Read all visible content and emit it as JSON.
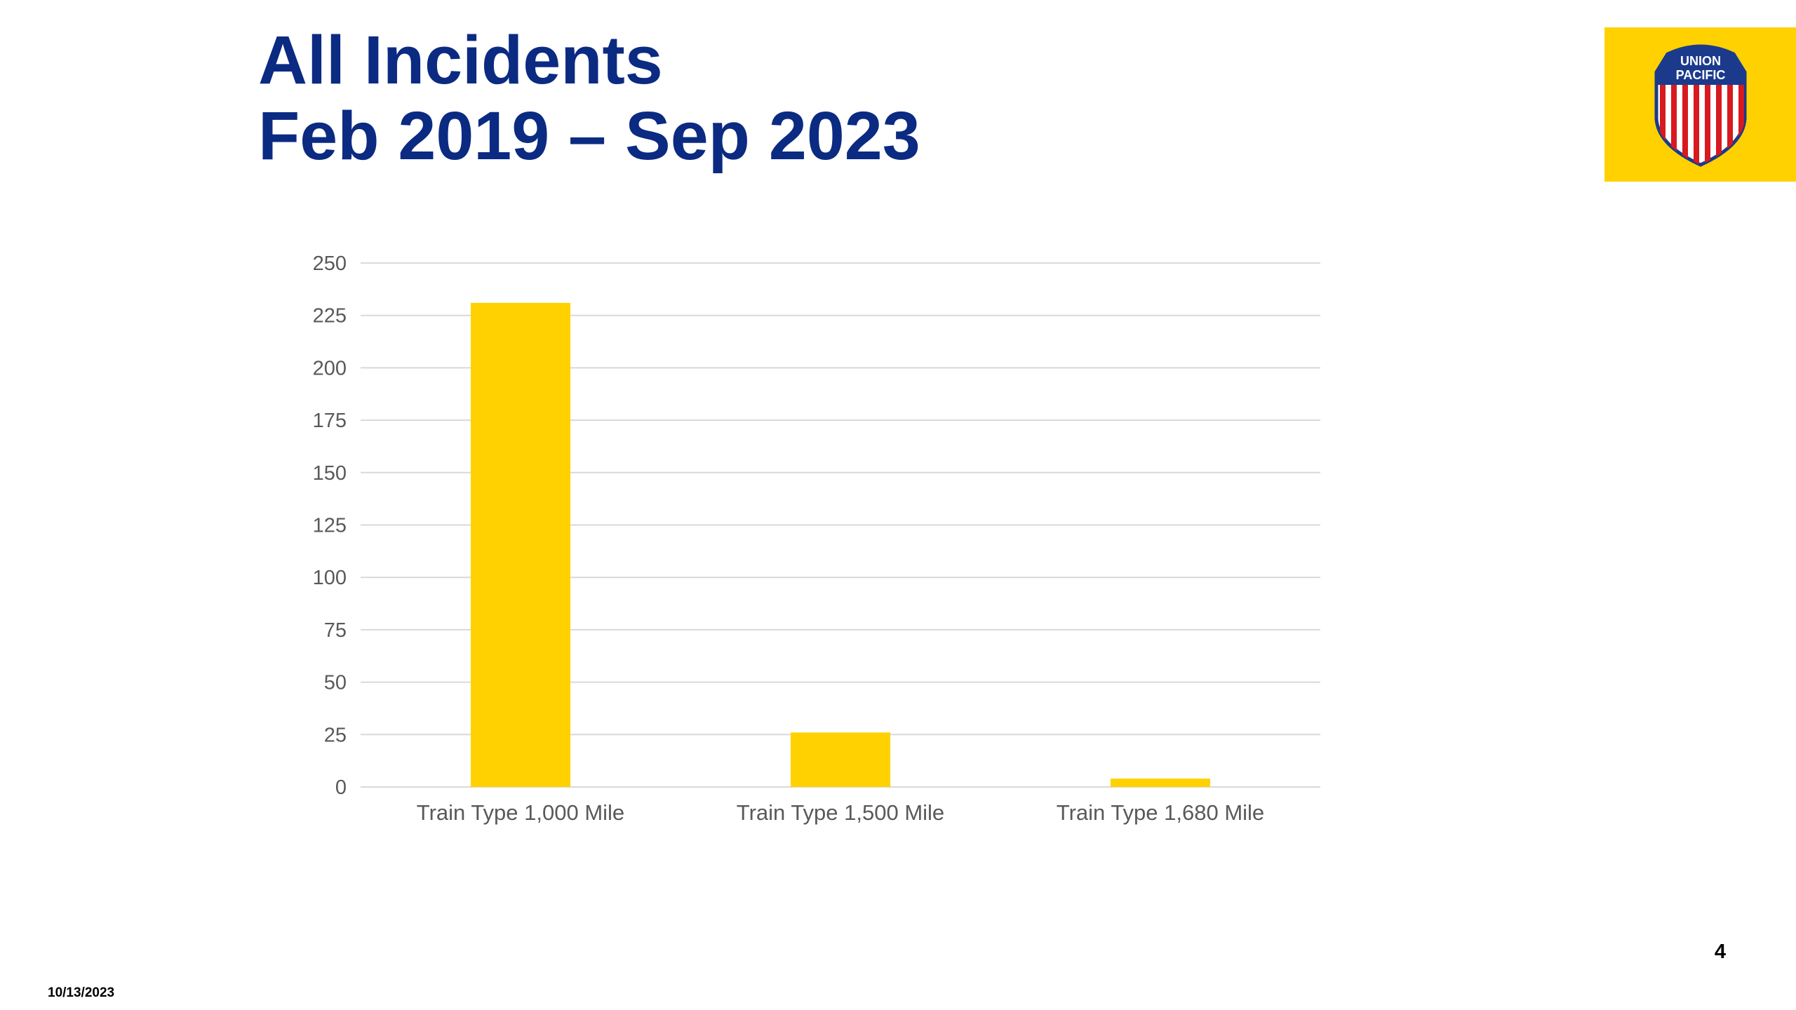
{
  "slide": {
    "title_line1": "All Incidents",
    "title_line2": "Feb 2019 – Sep 2023",
    "page_number": "4",
    "date": "10/13/2023"
  },
  "logo": {
    "text_line1": "UNION",
    "text_line2": "PACIFIC",
    "icon": "union-pacific-shield-icon",
    "background_color": "#ffd100",
    "shield_blue": "#1b3a8c",
    "shield_red": "#d71920"
  },
  "colors": {
    "title": "#0b2a82",
    "bar": "#ffd100",
    "grid": "#d9d9d9",
    "tick_text": "#595959"
  },
  "chart_data": {
    "type": "bar",
    "categories": [
      "Train Type 1,000 Mile",
      "Train Type 1,500 Mile",
      "Train Type 1,680 Mile"
    ],
    "values": [
      231,
      26,
      4
    ],
    "ylim": [
      0,
      250
    ],
    "yticks": [
      0,
      25,
      50,
      75,
      100,
      125,
      150,
      175,
      200,
      225,
      250
    ],
    "grid": true,
    "legend": "none",
    "title": "",
    "xlabel": "",
    "ylabel": ""
  }
}
